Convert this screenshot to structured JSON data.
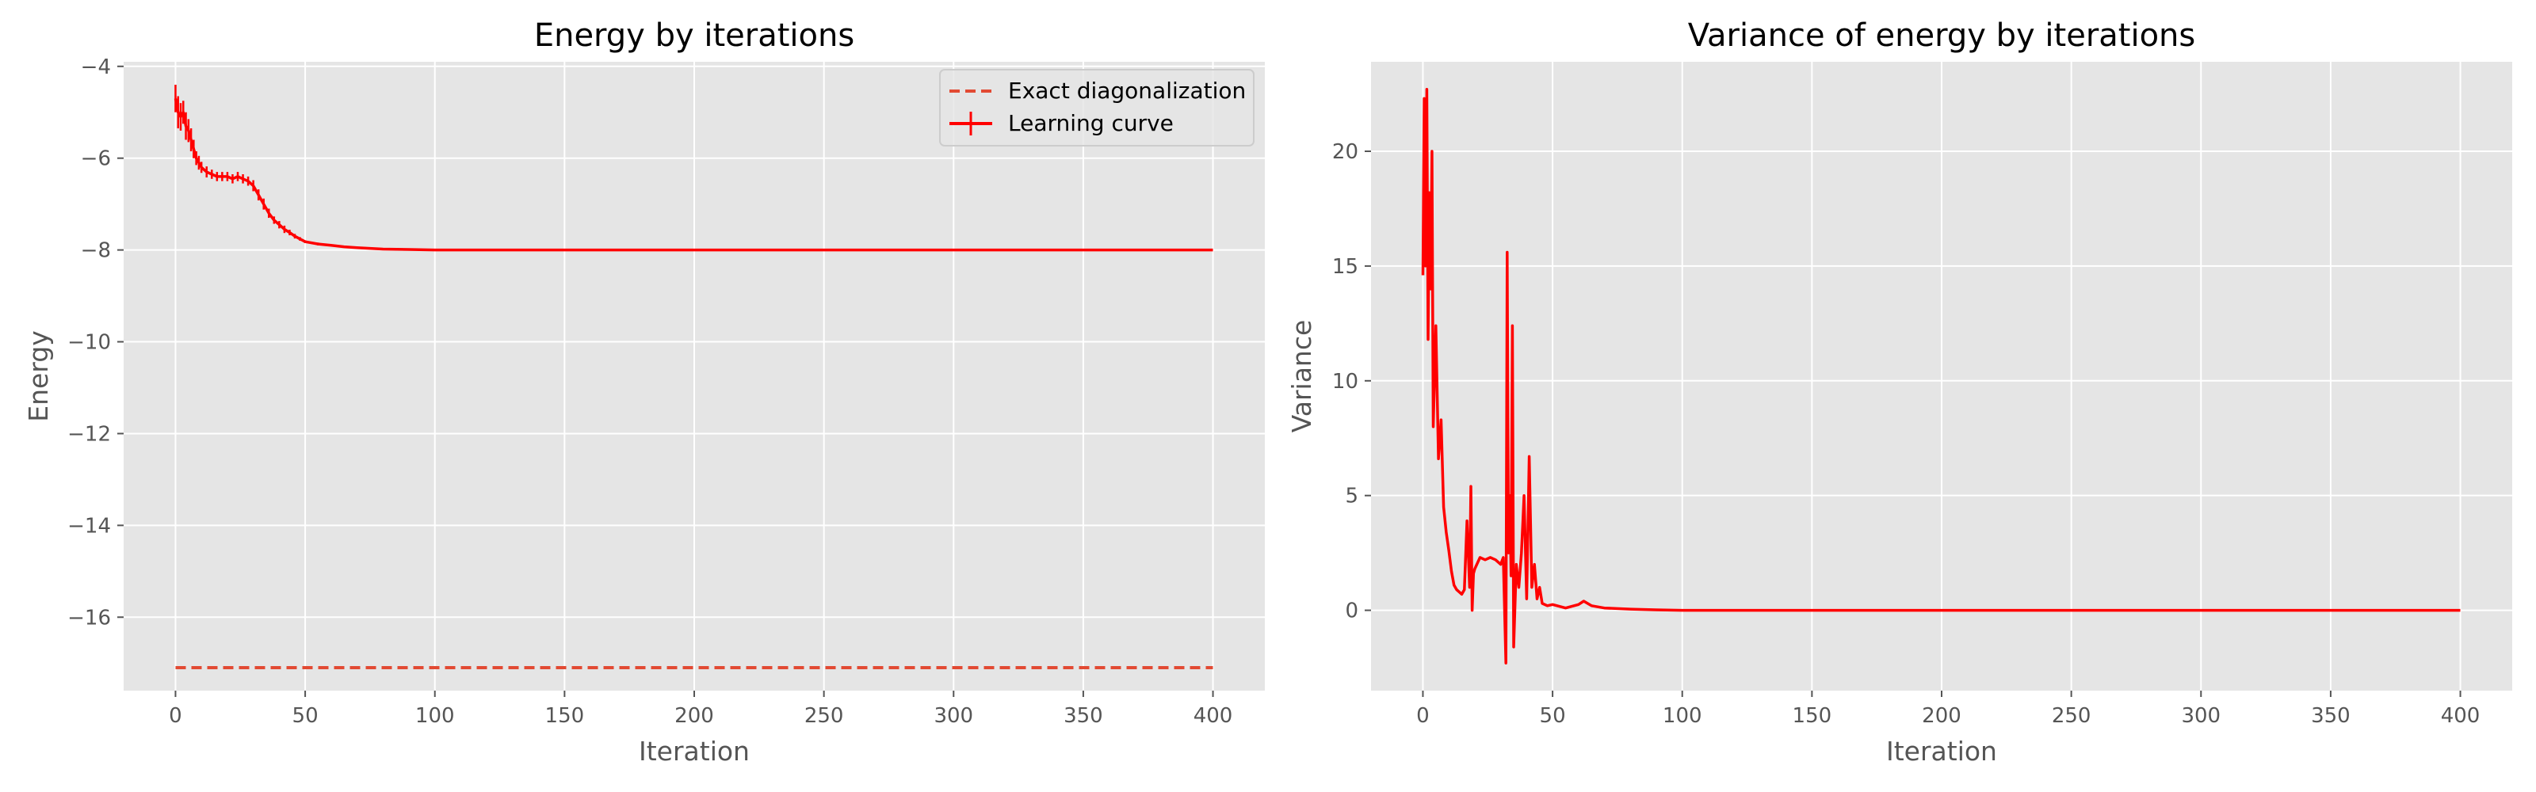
{
  "colors": {
    "axes_bg": "#e5e5e5",
    "grid": "#ffffff",
    "curve": "#ff0000",
    "exact": "#e24a33",
    "tick_text": "#555555"
  },
  "chart_data": [
    {
      "type": "line",
      "title": "Energy by iterations",
      "xlabel": "Iteration",
      "ylabel": "Energy",
      "xlim": [
        -20,
        420
      ],
      "ylim": [
        -17.6,
        -3.9
      ],
      "xticks": [
        0,
        50,
        100,
        150,
        200,
        250,
        300,
        350,
        400
      ],
      "yticks": [
        -16,
        -14,
        -12,
        -10,
        -8,
        -6,
        -4
      ],
      "ytick_labels": [
        "−16",
        "−14",
        "−12",
        "−10",
        "−8",
        "−6",
        "−4"
      ],
      "grid": true,
      "legend": {
        "placement": "top-right",
        "entries": [
          "Exact diagonalization",
          "Learning curve"
        ]
      },
      "series": [
        {
          "name": "Exact diagonalization",
          "style": "dashed",
          "x": [
            0,
            400
          ],
          "y": [
            -17.1,
            -17.1
          ]
        },
        {
          "name": "Learning curve",
          "style": "solid",
          "error_bars": true,
          "x": [
            0,
            1,
            2,
            3,
            4,
            5,
            6,
            7,
            8,
            9,
            10,
            12,
            14,
            16,
            18,
            20,
            22,
            24,
            26,
            28,
            30,
            32,
            34,
            36,
            38,
            40,
            42,
            44,
            46,
            48,
            50,
            55,
            60,
            65,
            70,
            80,
            90,
            100,
            120,
            150,
            200,
            250,
            300,
            350,
            400
          ],
          "y": [
            -4.7,
            -5.0,
            -5.1,
            -5.0,
            -5.3,
            -5.4,
            -5.6,
            -5.8,
            -6.0,
            -6.1,
            -6.2,
            -6.3,
            -6.35,
            -6.4,
            -6.4,
            -6.4,
            -6.45,
            -6.4,
            -6.45,
            -6.5,
            -6.6,
            -6.8,
            -7.0,
            -7.2,
            -7.35,
            -7.45,
            -7.55,
            -7.62,
            -7.7,
            -7.76,
            -7.82,
            -7.87,
            -7.9,
            -7.93,
            -7.95,
            -7.98,
            -7.99,
            -8.0,
            -8.0,
            -8.0,
            -8.0,
            -8.0,
            -8.0,
            -8.0,
            -8.0
          ],
          "err": [
            0.3,
            0.35,
            0.3,
            0.25,
            0.3,
            0.25,
            0.25,
            0.2,
            0.15,
            0.15,
            0.12,
            0.12,
            0.1,
            0.1,
            0.1,
            0.1,
            0.1,
            0.1,
            0.1,
            0.1,
            0.12,
            0.12,
            0.12,
            0.1,
            0.08,
            0.08,
            0.08,
            0.06,
            0.05,
            0.04,
            0.03,
            0.03,
            0.02,
            0.02,
            0.02,
            0.01,
            0.01,
            0.01,
            0.005,
            0.005,
            0.005,
            0.005,
            0.005,
            0.005,
            0.005
          ]
        }
      ]
    },
    {
      "type": "line",
      "title": "Variance of energy by iterations",
      "xlabel": "Iteration",
      "ylabel": "Variance",
      "xlim": [
        -20,
        420
      ],
      "ylim": [
        -3.5,
        23.9
      ],
      "xticks": [
        0,
        50,
        100,
        150,
        200,
        250,
        300,
        350,
        400
      ],
      "yticks": [
        0,
        5,
        10,
        15,
        20
      ],
      "grid": true,
      "series": [
        {
          "style": "solid",
          "x": [
            0,
            0.5,
            1,
            1.5,
            2,
            2.5,
            3,
            3.5,
            4,
            5,
            6,
            7,
            8,
            9,
            10,
            11,
            12,
            13,
            14,
            15,
            16,
            17,
            18,
            18.5,
            19,
            19.5,
            20,
            22,
            24,
            26,
            28,
            30,
            31,
            32,
            32.5,
            33,
            33.5,
            34,
            34.5,
            35,
            36,
            37,
            38,
            39,
            40,
            41,
            42,
            43,
            44,
            45,
            46,
            48,
            50,
            55,
            60,
            62,
            65,
            70,
            80,
            90,
            100,
            150,
            200,
            250,
            300,
            350,
            400
          ],
          "y": [
            14.6,
            22.3,
            15.0,
            22.7,
            11.8,
            18.2,
            14.0,
            20.0,
            8.0,
            12.4,
            6.6,
            8.3,
            4.5,
            3.4,
            2.6,
            1.7,
            1.1,
            0.9,
            0.8,
            0.7,
            0.9,
            3.9,
            1.0,
            5.4,
            0.0,
            1.6,
            1.8,
            2.3,
            2.2,
            2.3,
            2.2,
            2.0,
            2.3,
            -2.3,
            15.6,
            2.5,
            5.0,
            1.5,
            12.4,
            -1.6,
            2.0,
            1.0,
            2.5,
            5.0,
            0.5,
            6.7,
            1.0,
            2.0,
            0.5,
            1.0,
            0.3,
            0.2,
            0.25,
            0.1,
            0.25,
            0.4,
            0.2,
            0.1,
            0.05,
            0.02,
            0.0,
            0.0,
            0.0,
            0.0,
            0.0,
            0.0,
            0.0
          ]
        }
      ]
    }
  ]
}
